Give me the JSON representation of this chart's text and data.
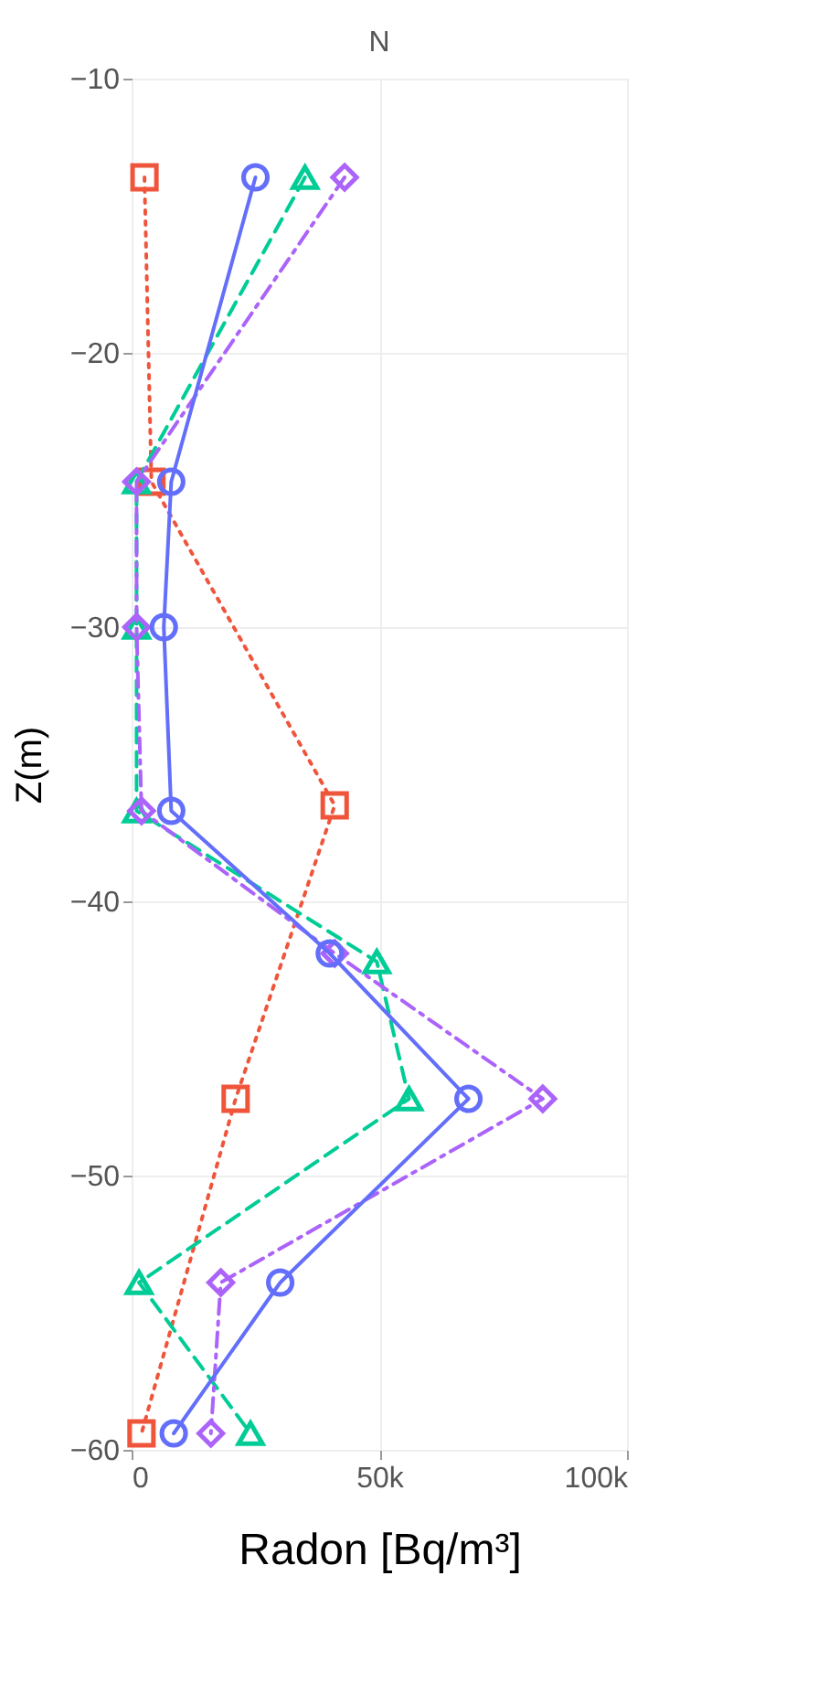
{
  "chart_data": {
    "type": "line",
    "title": "N",
    "xlabel": "Radon [Bq/m³]",
    "ylabel": "Z(m)",
    "xlim": [
      0,
      100000
    ],
    "xticks": [
      0,
      {
        "value": 50000,
        "label": "50k"
      },
      {
        "value": 100000,
        "label": "100k"
      }
    ],
    "ylim": [
      -60,
      -10
    ],
    "yticks": [
      {
        "value": -10,
        "label": "−10"
      },
      {
        "value": -20,
        "label": "−20"
      },
      {
        "value": -30,
        "label": "−30"
      },
      {
        "value": -40,
        "label": "−40"
      },
      {
        "value": -50,
        "label": "−50"
      },
      {
        "value": -60,
        "label": "−60"
      }
    ],
    "grid": true,
    "series": [
      {
        "color": "#ef553b",
        "marker": "square",
        "line_style": "dotted",
        "x": [
          2600,
          4000,
          41000,
          21000,
          2000
        ],
        "values": [
          -13.6,
          -24.7,
          -36.5,
          -47.2,
          -59.4
        ]
      },
      {
        "color": "#00cc96",
        "marker": "triangle",
        "line_style": "dashed",
        "x": [
          35000,
          1000,
          1000,
          1000,
          49500,
          56000,
          1500,
          24000
        ],
        "values": [
          -13.6,
          -24.7,
          -30,
          -36.7,
          -42.2,
          -47.2,
          -53.9,
          -59.4
        ]
      },
      {
        "color": "#ab63fa",
        "marker": "diamond",
        "line_style": "dashdot",
        "x": [
          43000,
          1000,
          1000,
          2000,
          41000,
          83000,
          18000,
          16000
        ],
        "values": [
          -13.6,
          -24.7,
          -30,
          -36.7,
          -41.9,
          -47.2,
          -53.9,
          -59.4
        ]
      },
      {
        "color": "#636efa",
        "marker": "circle",
        "line_style": "solid",
        "x": [
          25000,
          8000,
          6500,
          8000,
          40000,
          68000,
          30000,
          8500
        ],
        "values": [
          -13.6,
          -24.7,
          -30,
          -36.7,
          -41.9,
          -47.2,
          -53.9,
          -59.4
        ]
      }
    ]
  }
}
